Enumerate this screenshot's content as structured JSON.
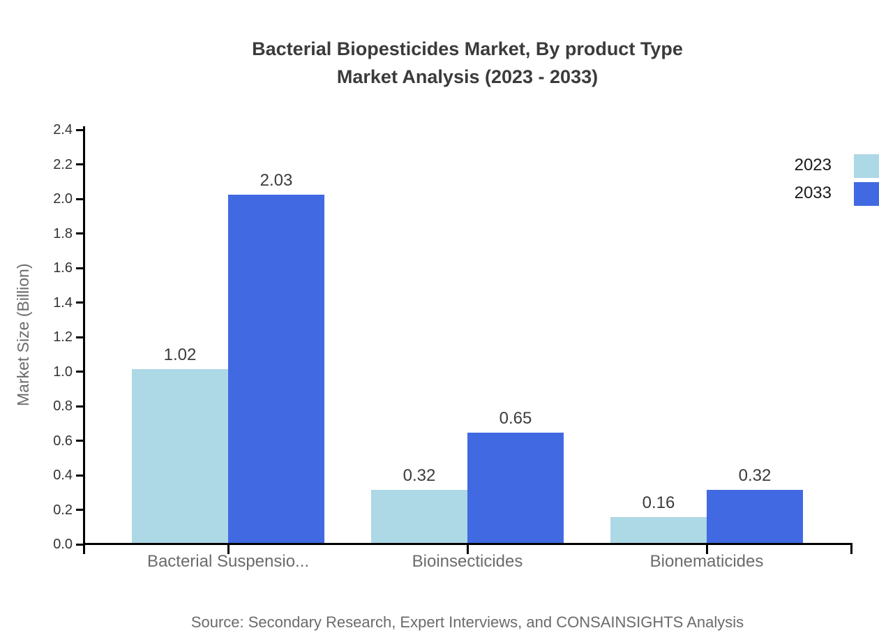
{
  "title": {
    "line1": "Bacterial Biopesticides Market, By product Type",
    "line2": "Market Analysis (2023 - 2033)"
  },
  "chart_data": {
    "type": "bar",
    "title": "Bacterial Biopesticides Market, By product Type Market Analysis (2023 - 2033)",
    "categories": [
      "Bacterial Suspensio...",
      "Bioinsecticides",
      "Bionematicides"
    ],
    "series": [
      {
        "name": "2023",
        "color": "#add8e6",
        "values": [
          1.02,
          0.32,
          0.16
        ]
      },
      {
        "name": "2033",
        "color": "#4169e1",
        "values": [
          2.03,
          0.65,
          0.32
        ]
      }
    ],
    "xlabel": "",
    "ylabel": "Market Size (Billion)",
    "ylim": [
      0.0,
      2.4
    ],
    "ytick_step": 0.2,
    "ytick_labels": [
      "0.0",
      "0.2",
      "0.4",
      "0.6",
      "0.8",
      "1.0",
      "1.2",
      "1.4",
      "1.6",
      "1.8",
      "2.0",
      "2.2",
      "2.4"
    ],
    "grid": false,
    "legend_position": "top-right",
    "bar_value_labels": true,
    "value_label_format": "2-decimals"
  },
  "footer": {
    "source": "Source: Secondary Research, Expert Interviews, and CONSAINSIGHTS Analysis"
  },
  "colors": {
    "series_2023": "#add8e6",
    "series_2033": "#4169e1",
    "axis": "#000000",
    "title_text": "#3b3b3b",
    "muted_text": "#6b6b6b",
    "background": "#ffffff"
  }
}
